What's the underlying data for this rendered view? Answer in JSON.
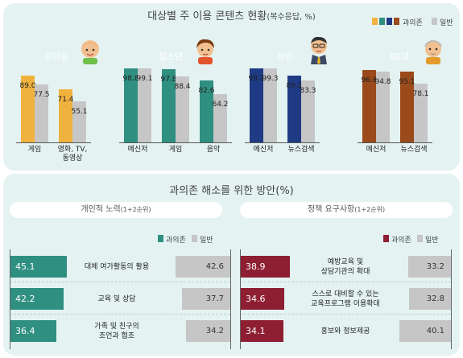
{
  "top": {
    "title": "대상별 주 이용 콘텐츠 현황",
    "subtitle": "(복수응답, %)",
    "legend": {
      "addicted": "과의존",
      "general": "일반"
    }
  },
  "bottom": {
    "title": "과의존 해소를 위한 방안(%)",
    "left": {
      "heading": "개인적 노력",
      "heading_sub": "(1+2순위)",
      "legend_addicted": "과의존",
      "legend_general": "일반"
    },
    "right": {
      "heading": "정책 요구사항",
      "heading_sub": "(1+2순위)",
      "legend_addicted": "과의존",
      "legend_general": "일반"
    }
  },
  "colors": {
    "infant": "#f0b23e",
    "teen": "#2f8f80",
    "adult": "#1f3b85",
    "senior": "#9b4a1b",
    "general_bar": "#c6c6c6",
    "personal_addicted": "#2f8f80",
    "policy_addicted": "#8e1f33",
    "bg": "#e4f3f2"
  },
  "icons": [
    "infant-avatar-icon",
    "teen-avatar-icon",
    "adult-avatar-icon",
    "senior-avatar-icon"
  ],
  "chart_data": [
    {
      "type": "bar",
      "title": "대상별 주 이용 콘텐츠 현황",
      "subtitle": "(복수응답, %)",
      "series": [
        {
          "name": "과의존"
        },
        {
          "name": "일반"
        }
      ],
      "groups": [
        {
          "label": "유아동",
          "categories": [
            "게임",
            "영화, TV,\n동영상"
          ],
          "addicted": [
            89.0,
            71.4
          ],
          "general": [
            77.5,
            55.1
          ]
        },
        {
          "label": "청소년",
          "categories": [
            "메신저",
            "게임",
            "음악"
          ],
          "addicted": [
            98.8,
            97.8,
            82.6
          ],
          "general": [
            99.1,
            88.4,
            64.2
          ]
        },
        {
          "label": "성인",
          "categories": [
            "메신저",
            "뉴스검색"
          ],
          "addicted": [
            99.2,
            89.2
          ],
          "general": [
            99.3,
            83.3
          ]
        },
        {
          "label": "60대",
          "categories": [
            "메신저",
            "뉴스검색"
          ],
          "addicted": [
            96.8,
            95.1
          ],
          "general": [
            94.8,
            78.1
          ]
        }
      ],
      "ylim": [
        0,
        100
      ]
    },
    {
      "type": "bar",
      "orientation": "horizontal",
      "title": "개인적 노력",
      "subtitle": "(1+2순위)",
      "series": [
        {
          "name": "과의존"
        },
        {
          "name": "일반"
        }
      ],
      "categories": [
        "대체 여가활동의 활용",
        "교육 및 상담",
        "가족 및 친구의\n조언과 협조"
      ],
      "addicted": [
        45.1,
        42.2,
        36.4
      ],
      "general": [
        42.6,
        37.7,
        34.2
      ]
    },
    {
      "type": "bar",
      "orientation": "horizontal",
      "title": "정책 요구사항",
      "subtitle": "(1+2순위)",
      "series": [
        {
          "name": "과의존"
        },
        {
          "name": "일반"
        }
      ],
      "categories": [
        "예방교육 및\n상담기관의 확대",
        "스스로 대비할 수 있는\n교육프로그램 이용확대",
        "홍보와 정보제공"
      ],
      "addicted": [
        38.9,
        34.6,
        34.1
      ],
      "general": [
        33.2,
        32.8,
        40.1
      ]
    }
  ]
}
